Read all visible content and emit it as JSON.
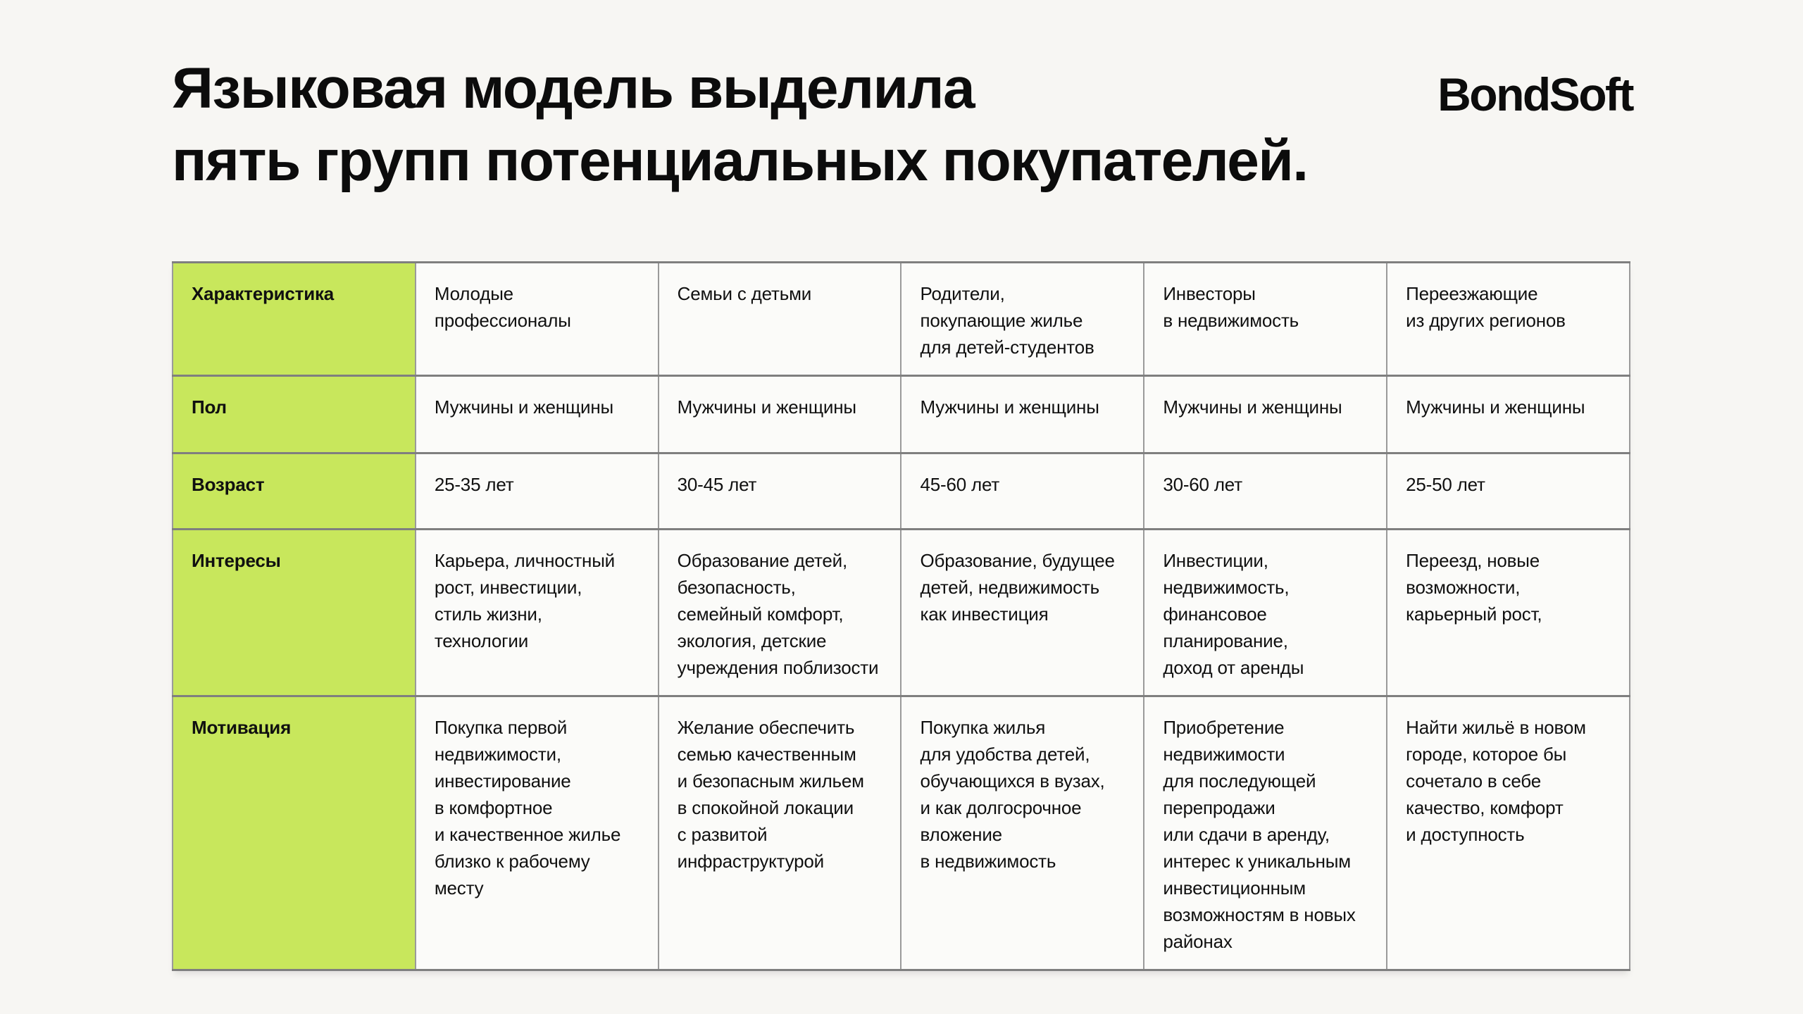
{
  "page": {
    "title_line1": "Языковая модель выделила",
    "title_line2": "пять групп потенциальных покупателей.",
    "logo_text": "BondSoft"
  },
  "colors": {
    "accent_green": "#c8e75c",
    "page_background": "#f7f6f3",
    "cell_background": "#fbfbf9",
    "border_horizontal": "#7f7f7f",
    "border_vertical": "#9a9a9a",
    "text": "#0c0c0c"
  },
  "table": {
    "corner_label": "Характеристика",
    "groups": [
      "Молодые\nпрофессионалы",
      "Семьи с детьми",
      "Родители,\nпокупающие жилье\nдля детей-студентов",
      "Инвесторы\nв недвижимость",
      "Переезжающие\nиз других регионов"
    ],
    "rows": [
      {
        "label": "Пол",
        "values": [
          "Мужчины и женщины",
          "Мужчины и женщины",
          "Мужчины и женщины",
          "Мужчины и женщины",
          "Мужчины и женщины"
        ]
      },
      {
        "label": "Возраст",
        "values": [
          "25-35 лет",
          "30-45 лет",
          "45-60 лет",
          "30-60 лет",
          "25-50 лет"
        ]
      },
      {
        "label": "Интересы",
        "values": [
          "Карьера, личностный\nрост, инвестиции,\nстиль жизни, технологии",
          "Образование детей,\nбезопасность,\nсемейный комфорт,\nэкология, детские\nучреждения поблизости",
          "Образование, будущее\nдетей, недвижимость\nкак инвестиция",
          "Инвестиции,\nнедвижимость,\nфинансовое\nпланирование,\nдоход от аренды",
          "Переезд, новые\nвозможности,\nкарьерный рост,"
        ]
      },
      {
        "label": "Мотивация",
        "values": [
          "Покупка первой\nнедвижимости,\nинвестирование\nв комфортное\nи качественное жилье\nблизко к рабочему\nместу",
          "Желание обеспечить\nсемью качественным\nи безопасным жильем\nв спокойной локации\nс развитой\nинфраструктурой",
          "Покупка жилья\nдля удобства детей,\nобучающихся в вузах,\nи как долгосрочное\nвложение\nв недвижимость",
          "Приобретение\nнедвижимости\nдля последующей\nперепродажи\nили сдачи в аренду,\nинтерес к уникальным\nинвестиционным\nвозможностям в новых\nрайонах",
          "Найти жильё в новом\nгороде, которое бы\nсочетало в себе\nкачество, комфорт\nи доступность"
        ]
      }
    ]
  }
}
